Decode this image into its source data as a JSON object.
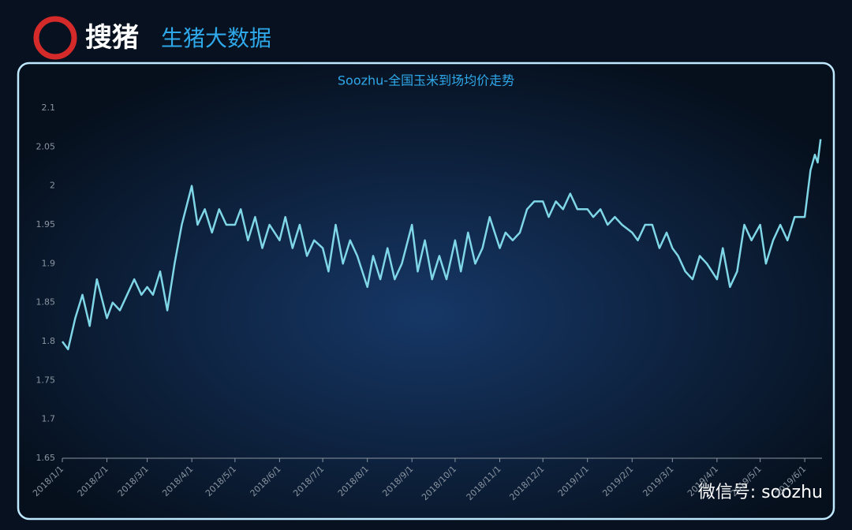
{
  "header": {
    "logo": "搜猪",
    "subtitle": "生猪大数据"
  },
  "watermark": "微信号: soozhu",
  "chart_data": {
    "type": "line",
    "title": "Soozhu-全国玉米到场均价走势",
    "x": [
      "2018/1/1",
      "2018/1/5",
      "2018/1/10",
      "2018/1/15",
      "2018/1/20",
      "2018/1/25",
      "2018/2/1",
      "2018/2/5",
      "2018/2/10",
      "2018/2/15",
      "2018/2/20",
      "2018/2/25",
      "2018/3/1",
      "2018/3/5",
      "2018/3/10",
      "2018/3/15",
      "2018/3/20",
      "2018/3/25",
      "2018/4/1",
      "2018/4/5",
      "2018/4/10",
      "2018/4/15",
      "2018/4/20",
      "2018/4/25",
      "2018/5/1",
      "2018/5/5",
      "2018/5/10",
      "2018/5/15",
      "2018/5/20",
      "2018/5/25",
      "2018/6/1",
      "2018/6/5",
      "2018/6/10",
      "2018/6/15",
      "2018/6/20",
      "2018/6/25",
      "2018/7/1",
      "2018/7/5",
      "2018/7/10",
      "2018/7/15",
      "2018/7/20",
      "2018/7/25",
      "2018/8/1",
      "2018/8/5",
      "2018/8/10",
      "2018/8/15",
      "2018/8/20",
      "2018/8/25",
      "2018/9/1",
      "2018/9/5",
      "2018/9/10",
      "2018/9/15",
      "2018/9/20",
      "2018/9/25",
      "2018/10/1",
      "2018/10/5",
      "2018/10/10",
      "2018/10/15",
      "2018/10/20",
      "2018/10/25",
      "2018/11/1",
      "2018/11/5",
      "2018/11/10",
      "2018/11/15",
      "2018/11/20",
      "2018/11/25",
      "2018/12/1",
      "2018/12/5",
      "2018/12/10",
      "2018/12/15",
      "2018/12/20",
      "2018/12/25",
      "2019/1/1",
      "2019/1/5",
      "2019/1/10",
      "2019/1/15",
      "2019/1/20",
      "2019/1/25",
      "2019/2/1",
      "2019/2/5",
      "2019/2/10",
      "2019/2/15",
      "2019/2/20",
      "2019/2/25",
      "2019/3/1",
      "2019/3/5",
      "2019/3/10",
      "2019/3/15",
      "2019/3/20",
      "2019/3/25",
      "2019/4/1",
      "2019/4/5",
      "2019/4/10",
      "2019/4/15",
      "2019/4/20",
      "2019/4/25",
      "2019/5/1",
      "2019/5/5",
      "2019/5/10",
      "2019/5/15",
      "2019/5/20",
      "2019/5/25",
      "2019/6/1",
      "2019/6/5",
      "2019/6/8",
      "2019/6/10",
      "2019/6/12"
    ],
    "series": [
      {
        "color": "#7fd6e6",
        "values": [
          1.8,
          1.79,
          1.83,
          1.86,
          1.82,
          1.88,
          1.83,
          1.85,
          1.84,
          1.86,
          1.88,
          1.86,
          1.87,
          1.86,
          1.89,
          1.84,
          1.9,
          1.95,
          2.0,
          1.95,
          1.97,
          1.94,
          1.97,
          1.95,
          1.95,
          1.97,
          1.93,
          1.96,
          1.92,
          1.95,
          1.93,
          1.96,
          1.92,
          1.95,
          1.91,
          1.93,
          1.92,
          1.89,
          1.95,
          1.9,
          1.93,
          1.91,
          1.87,
          1.91,
          1.88,
          1.92,
          1.88,
          1.9,
          1.95,
          1.89,
          1.93,
          1.88,
          1.91,
          1.88,
          1.93,
          1.89,
          1.94,
          1.9,
          1.92,
          1.96,
          1.92,
          1.94,
          1.93,
          1.94,
          1.97,
          1.98,
          1.98,
          1.96,
          1.98,
          1.97,
          1.99,
          1.97,
          1.97,
          1.96,
          1.97,
          1.95,
          1.96,
          1.95,
          1.94,
          1.93,
          1.95,
          1.95,
          1.92,
          1.94,
          1.92,
          1.91,
          1.89,
          1.88,
          1.91,
          1.9,
          1.88,
          1.92,
          1.87,
          1.89,
          1.95,
          1.93,
          1.95,
          1.9,
          1.93,
          1.95,
          1.93,
          1.96,
          1.96,
          2.02,
          2.04,
          2.03,
          2.06
        ]
      }
    ],
    "xlim": [
      "2018/1/1",
      "2019/6/13"
    ],
    "xticks": [
      "2018/1/1",
      "2018/2/1",
      "2018/3/1",
      "2018/4/1",
      "2018/5/1",
      "2018/6/1",
      "2018/7/1",
      "2018/8/1",
      "2018/9/1",
      "2018/10/1",
      "2018/11/1",
      "2018/12/1",
      "2019/1/1",
      "2019/2/1",
      "2019/3/1",
      "2019/4/1",
      "2019/5/1",
      "2019/6/1"
    ],
    "ylim": [
      1.65,
      2.1
    ],
    "yticks": [
      1.65,
      1.7,
      1.75,
      1.8,
      1.85,
      1.9,
      1.95,
      2,
      2.05,
      2.1
    ]
  }
}
